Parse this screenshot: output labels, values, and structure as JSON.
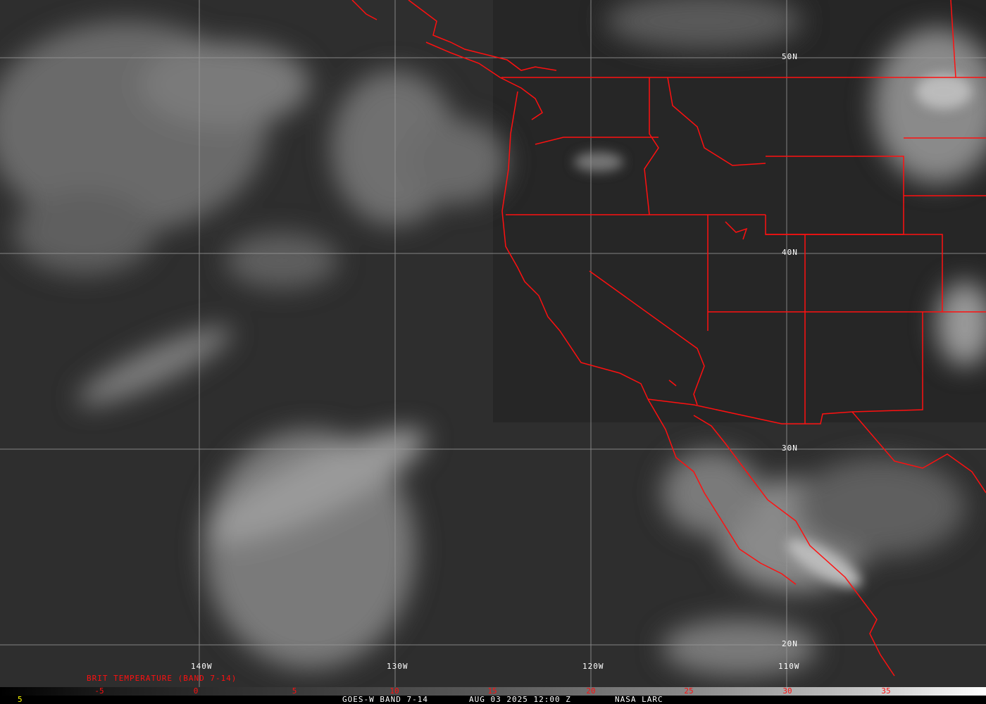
{
  "title": "GOES-W BAND 7-14",
  "timestamp": "AUG 03 2025 12:00 Z",
  "source": "NASA LARC",
  "frame_number": "5",
  "colorbar": {
    "label": "BRIT TEMPERATURE (BAND 7-14)",
    "ticks": [
      "-5",
      "0",
      "5",
      "10",
      "15",
      "20",
      "25",
      "30",
      "35"
    ]
  },
  "grid": {
    "longitudes": [
      "140W",
      "130W",
      "120W",
      "110W"
    ],
    "latitudes": [
      "50N",
      "40N",
      "30N",
      "20N"
    ]
  },
  "colors": {
    "borders": "#ff1010",
    "grid": "#9a9a9a",
    "frame_number": "#ffff00",
    "text": "#ffffff"
  }
}
